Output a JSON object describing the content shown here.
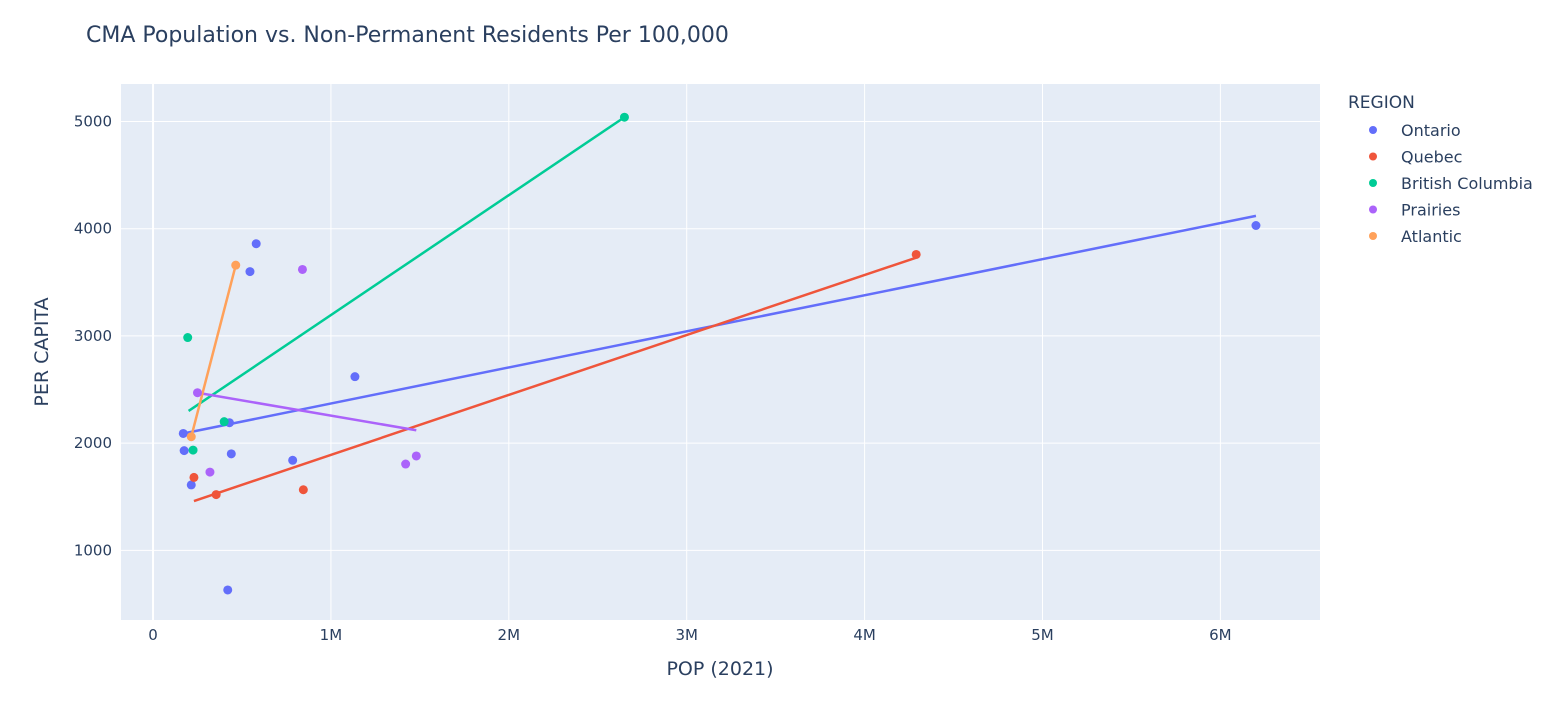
{
  "chart_data": {
    "type": "scatter",
    "title": "CMA Population vs. Non-Permanent Residents Per 100,000",
    "xlabel": "POP (2021)",
    "ylabel": "PER CAPITA",
    "xlim": [
      -180000,
      6560000
    ],
    "ylim": [
      350,
      5350
    ],
    "x_ticks": [
      {
        "value": 0,
        "label": "0"
      },
      {
        "value": 1000000,
        "label": "1M"
      },
      {
        "value": 2000000,
        "label": "2M"
      },
      {
        "value": 3000000,
        "label": "3M"
      },
      {
        "value": 4000000,
        "label": "4M"
      },
      {
        "value": 5000000,
        "label": "5M"
      },
      {
        "value": 6000000,
        "label": "6M"
      }
    ],
    "y_ticks": [
      {
        "value": 1000,
        "label": "1000"
      },
      {
        "value": 2000,
        "label": "2000"
      },
      {
        "value": 3000,
        "label": "3000"
      },
      {
        "value": 4000,
        "label": "4000"
      },
      {
        "value": 5000,
        "label": "5000"
      }
    ],
    "grid": true,
    "legend": {
      "title": "REGION",
      "position": "top-right, outside plot"
    },
    "colors": {
      "plot_bg": "#e5ecf6",
      "grid": "#ffffff",
      "text": "#2a3f5f"
    },
    "series": [
      {
        "name": "Ontario",
        "color": "#636efa",
        "points": [
          [
            170000,
            2090
          ],
          [
            175000,
            1930
          ],
          [
            215000,
            1610
          ],
          [
            420000,
            630
          ],
          [
            430000,
            2190
          ],
          [
            440000,
            1900
          ],
          [
            545000,
            3600
          ],
          [
            580000,
            3860
          ],
          [
            785000,
            1840
          ],
          [
            1135000,
            2620
          ],
          [
            6200000,
            4030
          ]
        ],
        "trendline": [
          [
            170000,
            2090
          ],
          [
            6200000,
            4120
          ]
        ]
      },
      {
        "name": "Quebec",
        "color": "#ef553b",
        "points": [
          [
            230000,
            1680
          ],
          [
            355000,
            1520
          ],
          [
            845000,
            1565
          ],
          [
            4290000,
            3760
          ]
        ],
        "trendline": [
          [
            230000,
            1460
          ],
          [
            4290000,
            3730
          ]
        ]
      },
      {
        "name": "British Columbia",
        "color": "#00cc96",
        "points": [
          [
            195000,
            2985
          ],
          [
            225000,
            1935
          ],
          [
            400000,
            2200
          ],
          [
            2650000,
            5040
          ]
        ],
        "trendline": [
          [
            200000,
            2300
          ],
          [
            2650000,
            5040
          ]
        ]
      },
      {
        "name": "Prairies",
        "color": "#ab63fa",
        "points": [
          [
            250000,
            2470
          ],
          [
            320000,
            1730
          ],
          [
            840000,
            3620
          ],
          [
            1420000,
            1805
          ],
          [
            1480000,
            1880
          ]
        ],
        "trendline": [
          [
            250000,
            2470
          ],
          [
            1480000,
            2120
          ]
        ]
      },
      {
        "name": "Atlantic",
        "color": "#ffa15a",
        "points": [
          [
            215000,
            2060
          ],
          [
            465000,
            3660
          ]
        ],
        "trendline": [
          [
            215000,
            2060
          ],
          [
            465000,
            3660
          ]
        ]
      }
    ]
  }
}
